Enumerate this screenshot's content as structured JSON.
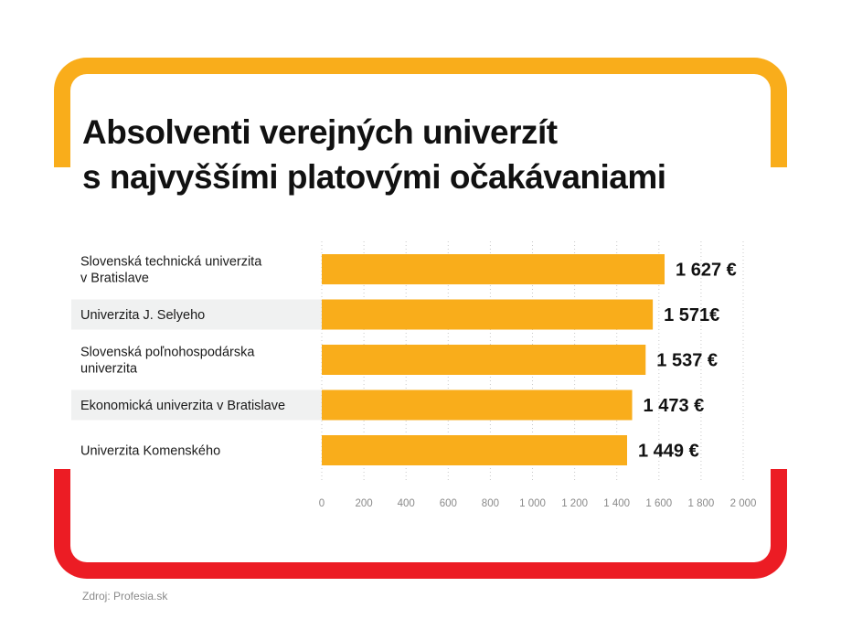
{
  "title": {
    "line1": "Absolventi verejných univerzít",
    "line2": "s najvyššími platovými očakávaniami"
  },
  "chart_data": {
    "type": "bar",
    "orientation": "horizontal",
    "categories": [
      [
        "Slovenská technická univerzita",
        "v Bratislave"
      ],
      [
        "Univerzita J. Selyeho"
      ],
      [
        "Slovenská poľnohospodárska",
        "univerzita"
      ],
      [
        "Ekonomická univerzita v Bratislave"
      ],
      [
        "Univerzita Komenského"
      ]
    ],
    "values": [
      1627,
      1571,
      1537,
      1473,
      1449
    ],
    "value_labels": [
      "1 627 €",
      "1 571€",
      "1 537 €",
      "1 473 €",
      "1 449 €"
    ],
    "xlim": [
      0,
      2000
    ],
    "x_ticks": [
      0,
      200,
      400,
      600,
      800,
      1000,
      1200,
      1400,
      1600,
      1800,
      2000
    ],
    "x_tick_labels": [
      "0",
      "200",
      "400",
      "600",
      "800",
      "1 000",
      "1 200",
      "1 400",
      "1 600",
      "1 800",
      "2 000"
    ],
    "grid": true,
    "bar_color": "#f9ad1b",
    "stripe_color": "#f0f1f1"
  },
  "source": "Zdroj: Profesia.sk",
  "colors": {
    "frame_top": "#f9ad1b",
    "frame_bottom": "#ec1c24"
  }
}
